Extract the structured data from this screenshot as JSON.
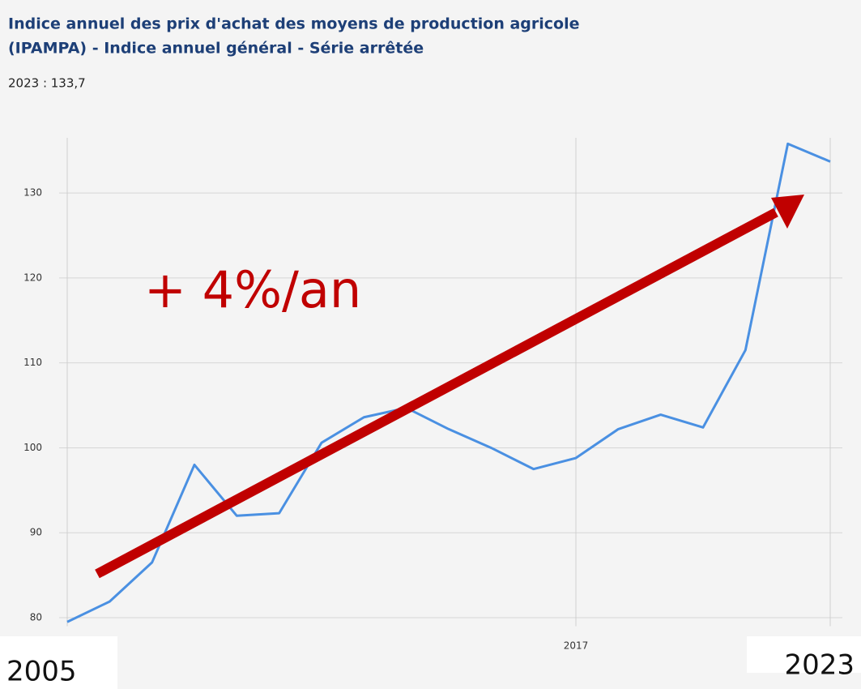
{
  "chart_data": {
    "type": "line",
    "title": [
      "Indice annuel des prix d'achat des moyens de production agricole",
      "(IPAMPA) - Indice annuel général - Série arrêtée"
    ],
    "subtitle": "2023 : 133,7",
    "x": [
      2005,
      2006,
      2007,
      2008,
      2009,
      2010,
      2011,
      2012,
      2013,
      2014,
      2015,
      2016,
      2017,
      2018,
      2019,
      2020,
      2021,
      2022,
      2023
    ],
    "series": [
      {
        "color": "#4a90e2",
        "values": [
          79.5,
          81.9,
          86.5,
          98.0,
          92.0,
          92.3,
          100.6,
          103.6,
          104.7,
          102.2,
          100.0,
          97.5,
          98.8,
          102.2,
          103.9,
          102.4,
          111.5,
          135.8,
          133.7
        ]
      }
    ],
    "xlim": [
      2005,
      2023
    ],
    "xticks": [
      2005,
      2017,
      2023
    ],
    "ylim": [
      79,
      136.5
    ],
    "yticks": [
      80,
      90,
      100,
      110,
      120,
      130
    ],
    "grid": true,
    "annotation": "+ 4%/an"
  }
}
